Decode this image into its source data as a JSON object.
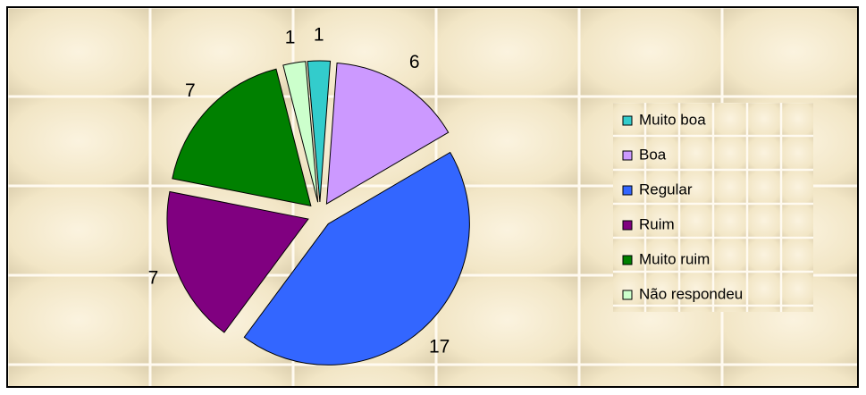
{
  "chart_data": {
    "type": "pie",
    "categories": [
      "Muito boa",
      "Boa",
      "Regular",
      "Ruim",
      "Muito ruim",
      "Não respondeu"
    ],
    "values": [
      1,
      6,
      17,
      7,
      7,
      1
    ],
    "colors": [
      "#33cccc",
      "#cc99ff",
      "#3366ff",
      "#800080",
      "#008000",
      "#ccffcc"
    ],
    "legend": "right"
  }
}
